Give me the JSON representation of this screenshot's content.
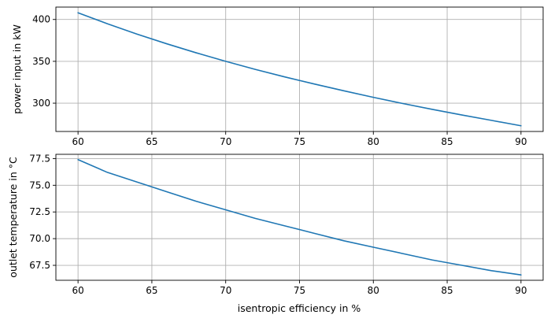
{
  "chart_data": [
    {
      "type": "line",
      "title": "",
      "xlabel": "",
      "ylabel": "power input in kW",
      "x": [
        60,
        62,
        64,
        66,
        68,
        70,
        72,
        74,
        76,
        78,
        80,
        82,
        84,
        86,
        88,
        90
      ],
      "series": [
        {
          "name": "power input",
          "color": "#1f77b4",
          "values": [
            408.0,
            394.8,
            382.5,
            371.0,
            360.2,
            350.0,
            340.4,
            331.4,
            322.9,
            314.8,
            307.0,
            299.6,
            292.6,
            285.9,
            279.5,
            273.0
          ]
        }
      ],
      "xlim": [
        58.5,
        91.5
      ],
      "ylim": [
        266.2,
        414.8
      ],
      "xticks": [
        60,
        65,
        70,
        75,
        80,
        85,
        90
      ],
      "yticks": [
        300,
        350,
        400
      ],
      "xtick_labels": [
        "60",
        "65",
        "70",
        "75",
        "80",
        "85",
        "90"
      ],
      "ytick_labels": [
        "300",
        "350",
        "400"
      ],
      "grid": true
    },
    {
      "type": "line",
      "title": "",
      "xlabel": "isentropic efficiency in %",
      "ylabel": "outlet temperature in °C",
      "x": [
        60,
        62,
        64,
        66,
        68,
        70,
        72,
        74,
        76,
        78,
        80,
        82,
        84,
        86,
        88,
        90
      ],
      "series": [
        {
          "name": "outlet temperature",
          "color": "#1f77b4",
          "values": [
            77.4,
            76.2,
            75.3,
            74.4,
            73.5,
            72.7,
            71.9,
            71.2,
            70.5,
            69.8,
            69.2,
            68.6,
            68.0,
            67.5,
            67.0,
            66.6
          ]
        }
      ],
      "xlim": [
        58.5,
        91.5
      ],
      "ylim": [
        66.1,
        77.9
      ],
      "xticks": [
        60,
        65,
        70,
        75,
        80,
        85,
        90
      ],
      "yticks": [
        67.5,
        70.0,
        72.5,
        75.0,
        77.5
      ],
      "xtick_labels": [
        "60",
        "65",
        "70",
        "75",
        "80",
        "85",
        "90"
      ],
      "ytick_labels": [
        "67.5",
        "70.0",
        "72.5",
        "75.0",
        "77.5"
      ],
      "grid": true
    }
  ]
}
